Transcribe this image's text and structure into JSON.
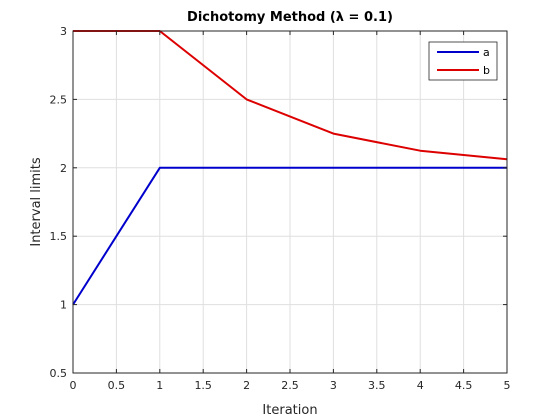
{
  "chart_data": {
    "type": "line",
    "title": "Dichotomy Method (λ = 0.1)",
    "xlabel": "Iteration",
    "ylabel": "Interval limits",
    "xlim": [
      0,
      5
    ],
    "ylim": [
      0.5,
      3
    ],
    "xticks": [
      "0",
      "0.5",
      "1",
      "1.5",
      "2",
      "2.5",
      "3",
      "3.5",
      "4",
      "4.5",
      "5"
    ],
    "yticks": [
      "0.5",
      "1",
      "1.5",
      "2",
      "2.5",
      "3"
    ],
    "grid": true,
    "legend_position": "top-right",
    "x": [
      0,
      1,
      2,
      3,
      4,
      5
    ],
    "series": [
      {
        "name": "a",
        "color": "#0000cc",
        "values": [
          1.0,
          2.0,
          2.0,
          2.0,
          2.0,
          2.0
        ]
      },
      {
        "name": "b",
        "color": "#dd0000",
        "values": [
          3.0,
          3.0,
          2.5,
          2.25,
          2.125,
          2.0625
        ]
      }
    ]
  }
}
